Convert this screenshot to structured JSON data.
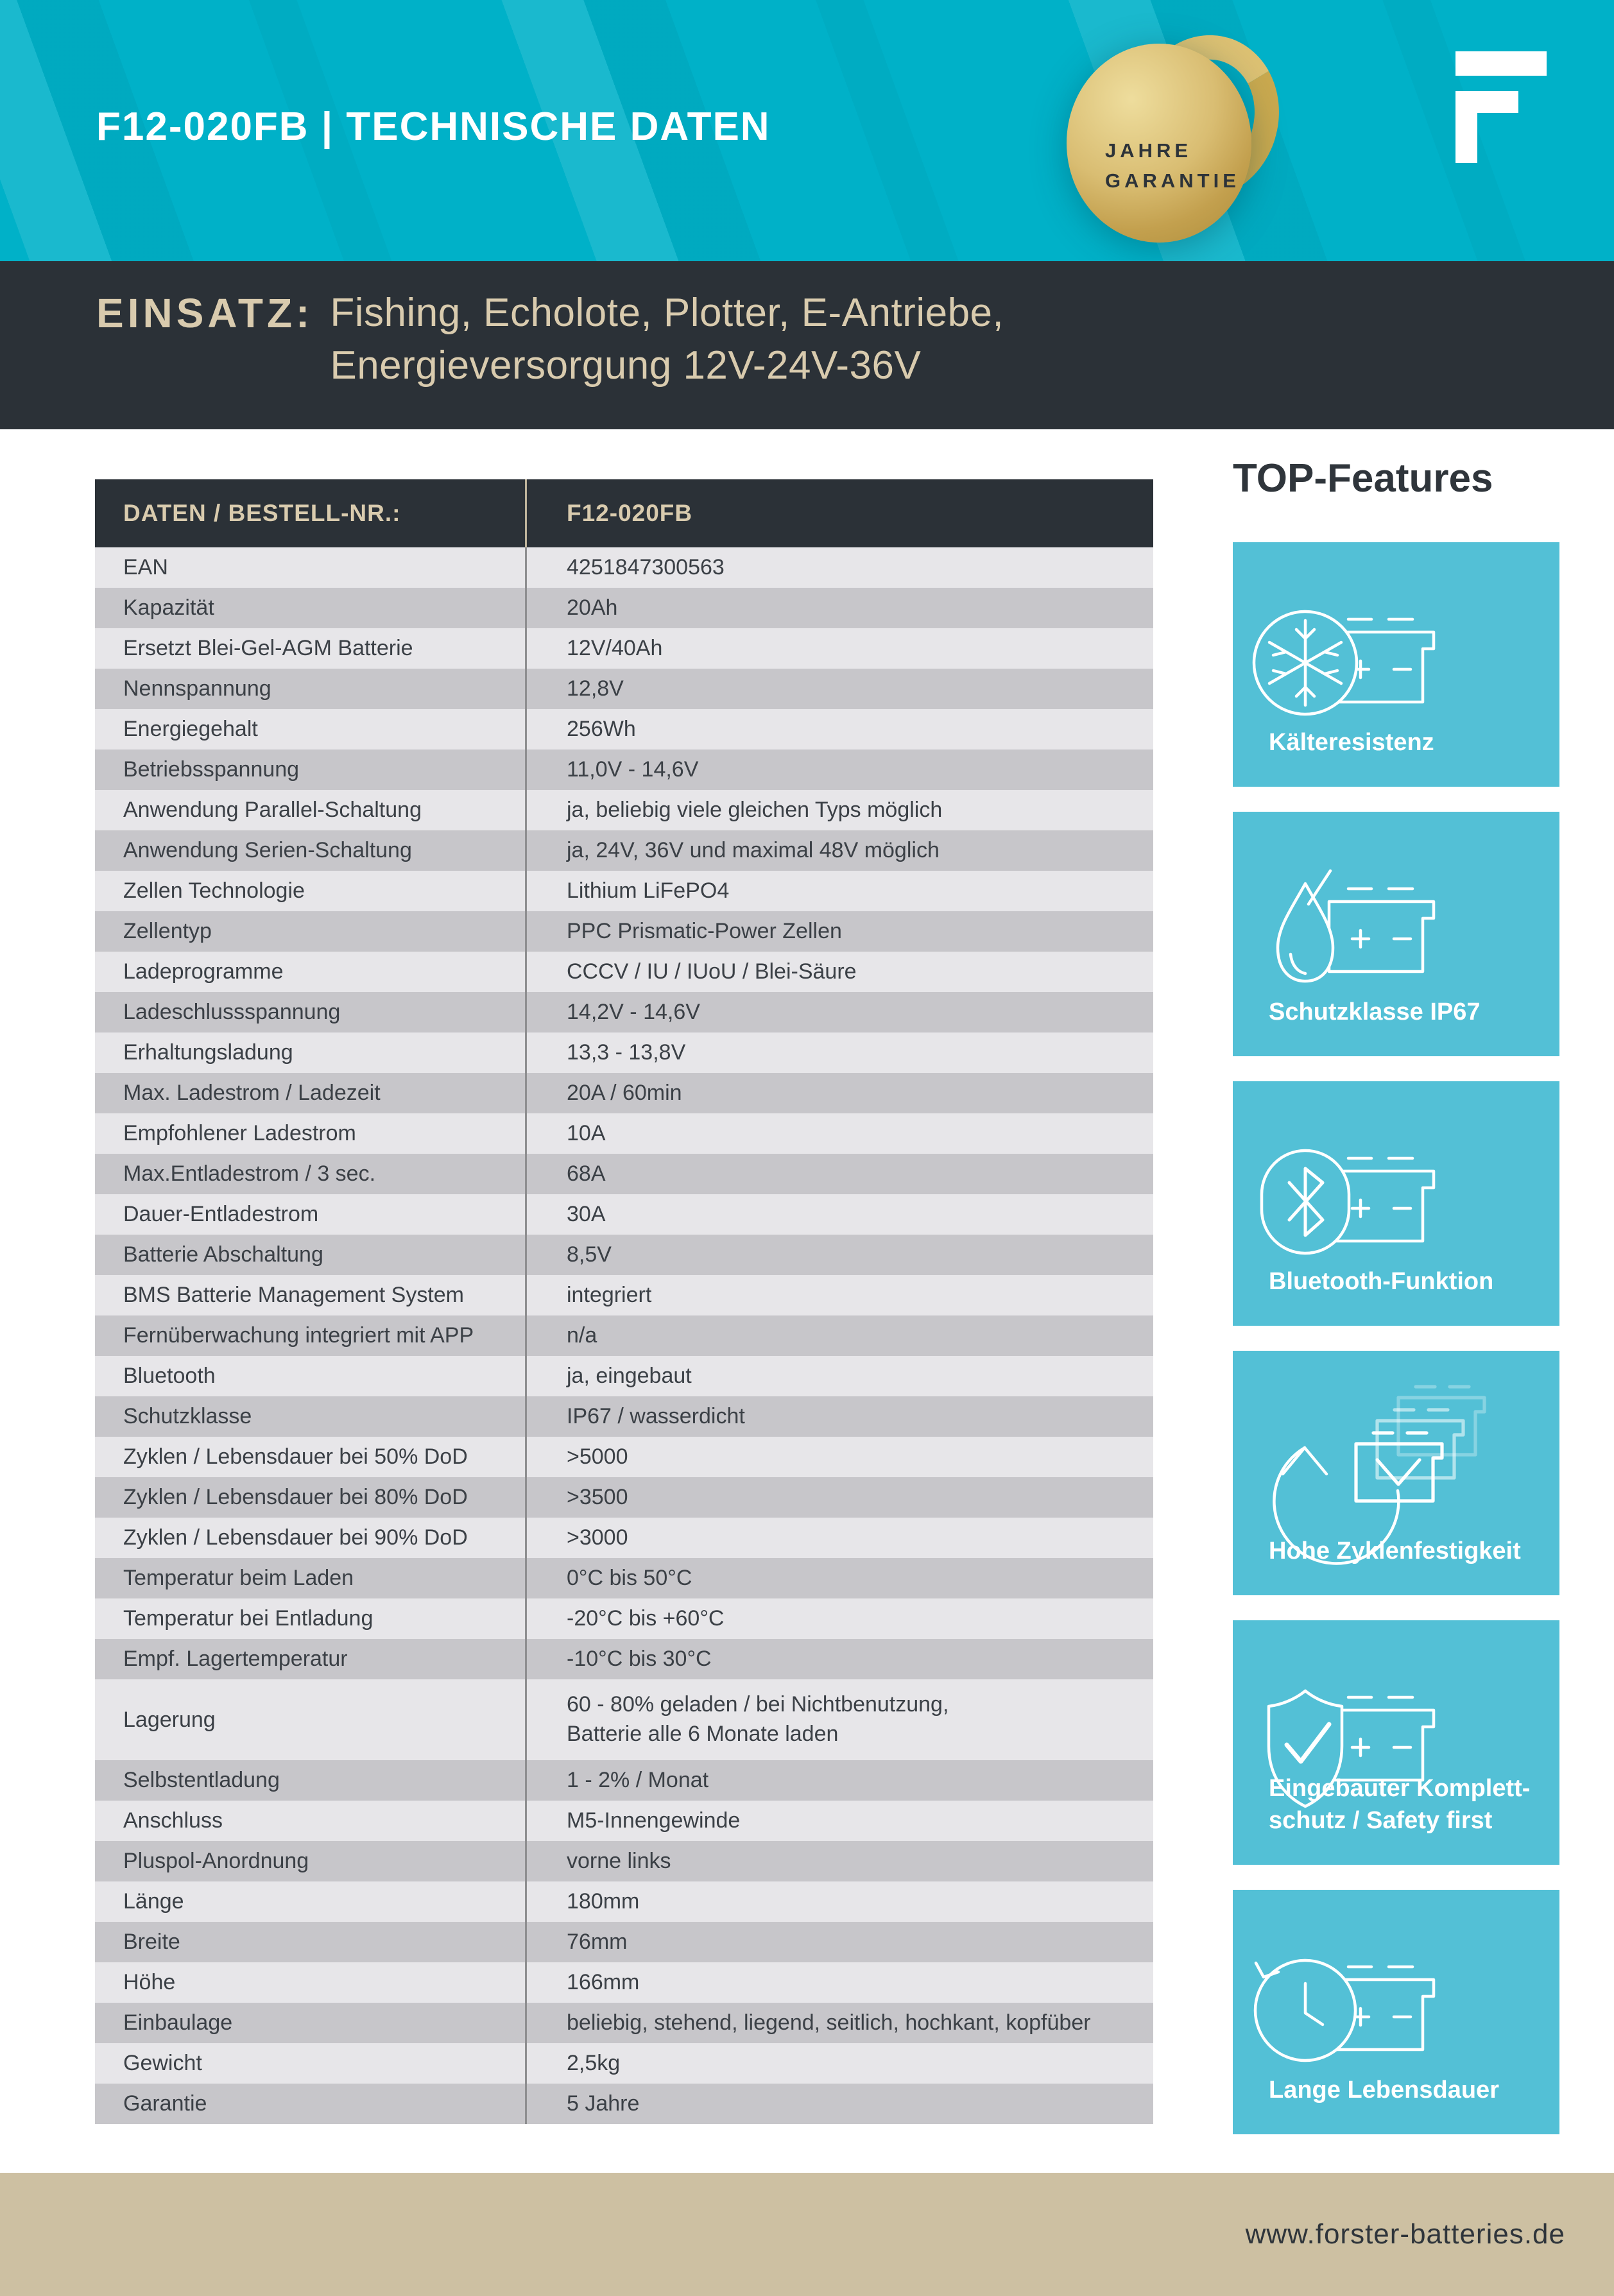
{
  "header": {
    "title": "F12-020FB | TECHNISCHE DATEN"
  },
  "badge": {
    "line1": "JAHRE",
    "line2": "GARANTIE"
  },
  "einsatz": {
    "label": "EINSATZ:",
    "line1": "Fishing, Echolote, Plotter, E-Antriebe,",
    "line2": "Energieversorgung 12V-24V-36V"
  },
  "table": {
    "col1_header": "DATEN / BESTELL-NR.:",
    "col2_header": "F12-020FB",
    "rows": [
      {
        "label": "EAN",
        "value": "4251847300563"
      },
      {
        "label": "Kapazität",
        "value": "20Ah"
      },
      {
        "label": "Ersetzt Blei-Gel-AGM Batterie",
        "value": "12V/40Ah"
      },
      {
        "label": "Nennspannung",
        "value": "12,8V"
      },
      {
        "label": "Energiegehalt",
        "value": "256Wh"
      },
      {
        "label": "Betriebsspannung",
        "value": "11,0V - 14,6V"
      },
      {
        "label": "Anwendung Parallel-Schaltung",
        "value": "ja, beliebig viele gleichen Typs möglich"
      },
      {
        "label": "Anwendung Serien-Schaltung",
        "value": "ja, 24V, 36V und maximal 48V möglich"
      },
      {
        "label": "Zellen Technologie",
        "value": "Lithium LiFePO4"
      },
      {
        "label": "Zellentyp",
        "value": "PPC Prismatic-Power Zellen"
      },
      {
        "label": "Ladeprogramme",
        "value": "CCCV / IU / IUoU / Blei-Säure"
      },
      {
        "label": "Ladeschlussspannung",
        "value": "14,2V  - 14,6V"
      },
      {
        "label": "Erhaltungsladung",
        "value": "13,3 - 13,8V"
      },
      {
        "label": "Max. Ladestrom / Ladezeit",
        "value": "20A / 60min"
      },
      {
        "label": "Empfohlener Ladestrom",
        "value": "10A"
      },
      {
        "label": "Max.Entladestrom / 3 sec.",
        "value": "68A"
      },
      {
        "label": "Dauer-Entladestrom",
        "value": "30A"
      },
      {
        "label": "Batterie Abschaltung",
        "value": "8,5V"
      },
      {
        "label": "BMS Batterie Management System",
        "value": "integriert"
      },
      {
        "label": "Fernüberwachung integriert mit APP",
        "value": "n/a"
      },
      {
        "label": "Bluetooth",
        "value": "ja, eingebaut"
      },
      {
        "label": "Schutzklasse",
        "value": "IP67 / wasserdicht"
      },
      {
        "label": "Zyklen / Lebensdauer bei 50% DoD",
        "value": ">5000"
      },
      {
        "label": "Zyklen / Lebensdauer bei 80% DoD",
        "value": ">3500"
      },
      {
        "label": "Zyklen / Lebensdauer bei 90% DoD",
        "value": ">3000"
      },
      {
        "label": "Temperatur beim Laden",
        "value": "0°C bis 50°C"
      },
      {
        "label": "Temperatur bei Entladung",
        "value": "-20°C bis +60°C"
      },
      {
        "label": "Empf. Lagertemperatur",
        "value": "-10°C bis 30°C"
      },
      {
        "label": "Lagerung",
        "value": "60 - 80% geladen / bei Nichtbenutzung,\nBatterie alle 6 Monate laden",
        "tall": true
      },
      {
        "label": "Selbstentladung",
        "value": "1 - 2% / Monat"
      },
      {
        "label": "Anschluss",
        "value": "M5-Innengewinde"
      },
      {
        "label": "Pluspol-Anordnung",
        "value": "vorne links"
      },
      {
        "label": "Länge",
        "value": "180mm"
      },
      {
        "label": "Breite",
        "value": "76mm"
      },
      {
        "label": "Höhe",
        "value": "166mm"
      },
      {
        "label": "Einbaulage",
        "value": "beliebig, stehend, liegend, seitlich, hochkant, kopfüber"
      },
      {
        "label": "Gewicht",
        "value": "2,5kg"
      },
      {
        "label": "Garantie",
        "value": "5 Jahre"
      }
    ]
  },
  "features": {
    "title": "TOP-Features",
    "cards": [
      {
        "icon": "snowflake-battery-icon",
        "label": "Kälteresistenz"
      },
      {
        "icon": "waterdrop-battery-icon",
        "label": "Schutzklasse IP67"
      },
      {
        "icon": "bluetooth-battery-icon",
        "label": "Bluetooth-Funktion"
      },
      {
        "icon": "cycle-batteries-icon",
        "label": "Hohe Zyklenfestigkeit"
      },
      {
        "icon": "shield-check-battery-icon",
        "label": "Eingebauter Komplett-\nschutz /  Safety first"
      },
      {
        "icon": "clock-battery-icon",
        "label": "Lange Lebensdauer"
      }
    ]
  },
  "footer": {
    "url": "www.forster-batteries.de"
  },
  "colors": {
    "header_cyan": "#00b1c8",
    "card_cyan": "#53c0d6",
    "charcoal": "#2b3137",
    "cream_text": "#d9cbae",
    "row_light": "#e7e6e9",
    "row_dark": "#c7c6ca",
    "footer_beige": "#cdc0a2",
    "gold": "#c9a94f",
    "body_text": "#3b4046"
  }
}
